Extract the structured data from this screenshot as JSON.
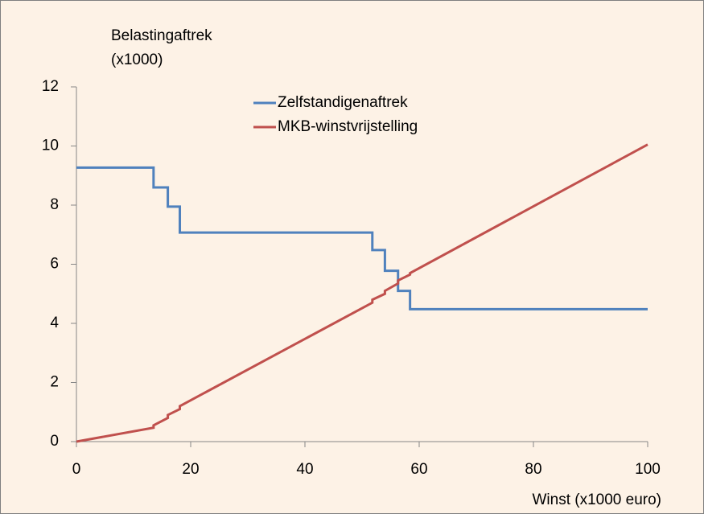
{
  "chart_data": {
    "type": "line",
    "ylabel_line1": "Belastingaftrek",
    "ylabel_line2": "(x1000)",
    "xlabel": "Winst (x1000 euro)",
    "xlim": [
      0,
      100
    ],
    "xticks": [
      0,
      20,
      40,
      60,
      80,
      100
    ],
    "ylim": [
      0,
      12
    ],
    "yticks": [
      0,
      2,
      4,
      6,
      8,
      10,
      12
    ],
    "grid": false,
    "series": [
      {
        "name": "Zelfstandigenaftrek",
        "color": "#4f81bd",
        "x": [
          0,
          13.5,
          13.5,
          16,
          16,
          18.1,
          18.1,
          51.8,
          51.8,
          54,
          54,
          56.3,
          56.3,
          58.4,
          58.4,
          100
        ],
        "values": [
          9.27,
          9.27,
          8.6,
          8.6,
          7.95,
          7.95,
          7.07,
          7.07,
          6.48,
          6.48,
          5.78,
          5.78,
          5.1,
          5.1,
          4.48,
          4.48
        ]
      },
      {
        "name": "MKB-winstvrijstelling",
        "color": "#c0504d",
        "x": [
          0,
          13.5,
          13.5,
          16,
          16,
          18.1,
          18.1,
          51.8,
          51.8,
          54,
          54,
          56.3,
          56.3,
          58.4,
          58.4,
          100
        ],
        "values": [
          0,
          0.47,
          0.55,
          0.8,
          0.9,
          1.1,
          1.2,
          4.7,
          4.8,
          5.0,
          5.1,
          5.35,
          5.45,
          5.65,
          5.7,
          10.05
        ]
      }
    ]
  }
}
